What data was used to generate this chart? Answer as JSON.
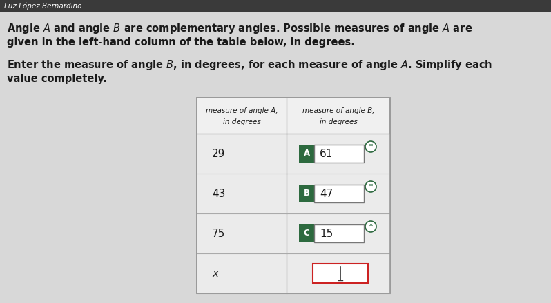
{
  "header_name": "Luz López Bernardino",
  "header_bg": "#3a3a3a",
  "bg_color": "#c8c8c8",
  "body_bg": "#d8d8d8",
  "title_line1": "Angle $A$ and angle $B$ are complementary angles. Possible measures of angle $A$ are",
  "title_line2": "given in the left-hand column of the table below, in degrees.",
  "subtitle_line1": "Enter the measure of angle $B$, in degrees, for each measure of angle $A$. Simplify each",
  "subtitle_line2": "value completely.",
  "col1_header_line1": "measure of angle A,",
  "col1_header_line2": "in degrees",
  "col2_header_line1": "measure of angle B,",
  "col2_header_line2": "in degrees",
  "rows": [
    {
      "angle_a": "29",
      "label": "A",
      "angle_b": "61",
      "label_color": "#2d6a3f",
      "answered": true
    },
    {
      "angle_a": "43",
      "label": "B",
      "angle_b": "47",
      "label_color": "#2d6a3f",
      "answered": true
    },
    {
      "angle_a": "75",
      "label": "C",
      "angle_b": "15",
      "label_color": "#2d6a3f",
      "answered": true
    },
    {
      "angle_a": "x",
      "label": "",
      "angle_b": "",
      "label_color": "#ffffff",
      "answered": false
    }
  ],
  "text_color": "#1a1a1a",
  "header_text_color": "#ffffff",
  "table_bg": "#f0f0f0",
  "row_bg": "#ebebeb"
}
